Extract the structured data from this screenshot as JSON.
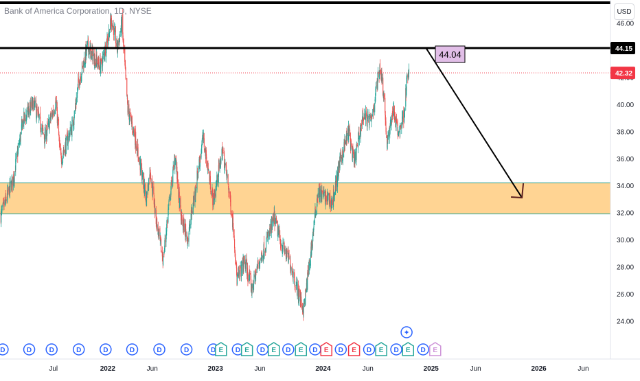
{
  "header": {
    "title": "Bank of America Corporation, 1D, NYSE",
    "currency": "USD"
  },
  "colors": {
    "up": "#26a69a",
    "down": "#ef5350",
    "zone_fill": "#ffcc80",
    "zone_border": "#26a69a",
    "resistance_line": "#000000",
    "last_price_line": "#f23645",
    "annotation_bg": "#e1bee7",
    "dividend_marker": "#2962ff",
    "earnings_up": "#26a69a",
    "earnings_down": "#f23645",
    "future_marker": "#ce93d8"
  },
  "chart_data": {
    "type": "candlestick",
    "title": "Bank of America Corporation, 1D, NYSE",
    "y_axis": {
      "ticks": [
        24,
        26,
        28,
        30,
        32,
        34,
        36,
        38,
        40,
        42,
        44,
        46
      ],
      "tick_labels": [
        "24.00",
        "26.00",
        "28.00",
        "30.00",
        "32.00",
        "34.00",
        "36.00",
        "38.00",
        "40.00",
        "42.00",
        "44.00",
        "46.00"
      ],
      "range": [
        22.5,
        47.5
      ]
    },
    "x_axis": {
      "tick_labels": [
        "Jul",
        "2022",
        "Jun",
        "2023",
        "Jun",
        "2024",
        "Jun",
        "2025",
        "Jun",
        "2026",
        "Jun"
      ],
      "tick_dates": [
        "2021-07-01",
        "2022-01-01",
        "2022-06-01",
        "2023-01-01",
        "2023-06-01",
        "2024-01-01",
        "2024-06-01",
        "2025-01-01",
        "2025-06-01",
        "2026-01-01",
        "2026-06-01"
      ],
      "bold_labels": [
        "2022",
        "2023",
        "2024",
        "2025",
        "2026"
      ],
      "range": [
        "2021-01-01",
        "2026-09-01"
      ]
    },
    "price_path": [
      [
        "2021-01-04",
        31.8
      ],
      [
        "2021-02-15",
        34.5
      ],
      [
        "2021-03-20",
        38.8
      ],
      [
        "2021-04-25",
        40.1
      ],
      [
        "2021-06-01",
        37.5
      ],
      [
        "2021-07-10",
        40.2
      ],
      [
        "2021-07-25",
        35.9
      ],
      [
        "2021-09-05",
        38.5
      ],
      [
        "2021-09-25",
        41.7
      ],
      [
        "2021-10-25",
        44.3
      ],
      [
        "2021-11-20",
        43.3
      ],
      [
        "2021-12-10",
        42.8
      ],
      [
        "2022-01-15",
        46.3
      ],
      [
        "2022-02-03",
        44.1
      ],
      [
        "2022-02-18",
        46.0
      ],
      [
        "2022-03-10",
        39.6
      ],
      [
        "2022-04-01",
        37.9
      ],
      [
        "2022-05-12",
        33.0
      ],
      [
        "2022-05-25",
        35.2
      ],
      [
        "2022-06-16",
        31.2
      ],
      [
        "2022-07-08",
        28.5
      ],
      [
        "2022-07-25",
        32.1
      ],
      [
        "2022-08-18",
        36.2
      ],
      [
        "2022-09-06",
        31.6
      ],
      [
        "2022-09-30",
        30.1
      ],
      [
        "2022-10-20",
        33.0
      ],
      [
        "2022-11-20",
        37.6
      ],
      [
        "2022-12-25",
        32.8
      ],
      [
        "2023-01-25",
        36.6
      ],
      [
        "2023-02-15",
        33.8
      ],
      [
        "2023-03-05",
        30.5
      ],
      [
        "2023-03-15",
        27.0
      ],
      [
        "2023-04-10",
        28.4
      ],
      [
        "2023-05-05",
        26.3
      ],
      [
        "2023-05-25",
        28.1
      ],
      [
        "2023-06-15",
        29.3
      ],
      [
        "2023-07-20",
        31.6
      ],
      [
        "2023-08-10",
        29.8
      ],
      [
        "2023-09-10",
        28.4
      ],
      [
        "2023-10-05",
        26.4
      ],
      [
        "2023-10-27",
        24.8
      ],
      [
        "2023-11-20",
        29.0
      ],
      [
        "2023-12-14",
        33.5
      ],
      [
        "2024-01-10",
        33.1
      ],
      [
        "2024-02-01",
        32.8
      ],
      [
        "2024-03-01",
        36.0
      ],
      [
        "2024-03-28",
        38.0
      ],
      [
        "2024-04-15",
        35.6
      ],
      [
        "2024-05-15",
        39.2
      ],
      [
        "2024-06-12",
        38.7
      ],
      [
        "2024-07-12",
        42.9
      ],
      [
        "2024-07-25",
        40.7
      ],
      [
        "2024-08-05",
        36.9
      ],
      [
        "2024-08-25",
        39.7
      ],
      [
        "2024-09-12",
        37.8
      ],
      [
        "2024-10-01",
        39.3
      ],
      [
        "2024-10-12",
        41.9
      ],
      [
        "2024-10-18",
        42.32
      ]
    ],
    "current_price": 42.32,
    "resistance": {
      "price": 44.15,
      "label": "44.15"
    },
    "demand_zone": {
      "top": 34.2,
      "bottom": 31.9
    },
    "projection": {
      "from": [
        "2024-12-15",
        44.15
      ],
      "to": [
        "2025-11-05",
        33.1
      ]
    },
    "annotation_box": {
      "text": "44.04"
    },
    "price_labels": {
      "resistance": "44.15",
      "current": "42.32"
    }
  },
  "events": {
    "markers": [
      {
        "date": "2021-01-10",
        "type": "D"
      },
      {
        "date": "2021-04-10",
        "type": "D"
      },
      {
        "date": "2021-06-25",
        "type": "D"
      },
      {
        "date": "2021-09-25",
        "type": "D"
      },
      {
        "date": "2021-12-25",
        "type": "D"
      },
      {
        "date": "2022-03-25",
        "type": "D"
      },
      {
        "date": "2022-06-25",
        "type": "D"
      },
      {
        "date": "2022-09-25",
        "type": "D"
      },
      {
        "date": "2022-12-25",
        "type": "D"
      },
      {
        "date": "2023-01-20",
        "type": "E",
        "color": "up"
      },
      {
        "date": "2023-03-18",
        "type": "D"
      },
      {
        "date": "2023-04-18",
        "type": "E",
        "color": "up"
      },
      {
        "date": "2023-06-10",
        "type": "D"
      },
      {
        "date": "2023-07-18",
        "type": "E",
        "color": "up"
      },
      {
        "date": "2023-09-05",
        "type": "D"
      },
      {
        "date": "2023-10-18",
        "type": "E",
        "color": "up"
      },
      {
        "date": "2023-12-05",
        "type": "D"
      },
      {
        "date": "2024-01-12",
        "type": "E",
        "color": "down"
      },
      {
        "date": "2024-03-01",
        "type": "D"
      },
      {
        "date": "2024-04-15",
        "type": "E",
        "color": "down"
      },
      {
        "date": "2024-06-05",
        "type": "D"
      },
      {
        "date": "2024-07-16",
        "type": "E",
        "color": "up"
      },
      {
        "date": "2024-09-05",
        "type": "D"
      },
      {
        "date": "2024-10-15",
        "type": "E",
        "color": "up"
      },
      {
        "date": "2024-12-05",
        "type": "D",
        "future": true
      },
      {
        "date": "2025-01-15",
        "type": "E",
        "future": true
      }
    ],
    "highlight": {
      "date": "2024-10-10",
      "icon": "✦"
    }
  }
}
